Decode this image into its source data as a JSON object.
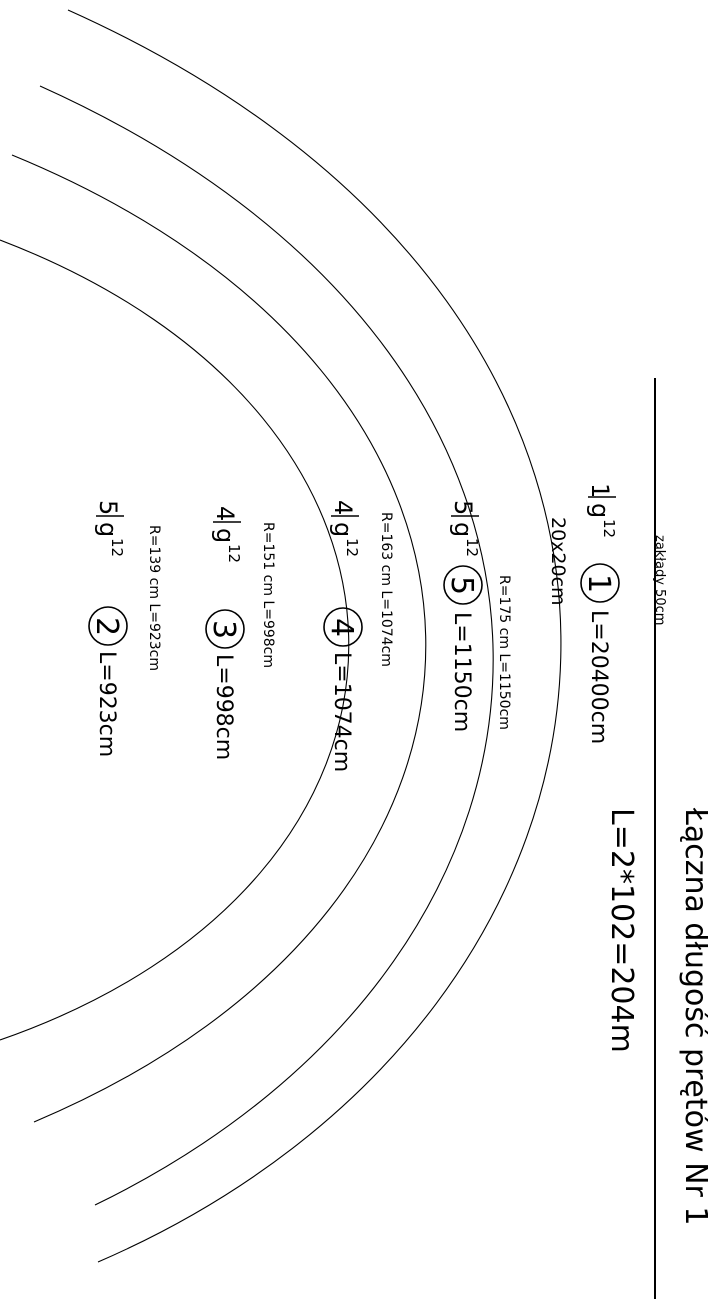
{
  "title": "Łączna długość prętów Nr 1",
  "total_length": "L=2*102=204m",
  "overlap_note": "zakłady 50cm",
  "main_bar": {
    "count": "1",
    "bar": "g",
    "diameter": "12",
    "number": "1",
    "length": "L=20400cm",
    "section": "20x20cm"
  },
  "arcs": [
    {
      "count": "5",
      "bar": "g",
      "diameter": "12",
      "number": "5",
      "length": "L=1150cm",
      "note": "R=175  cm  L=1150cm"
    },
    {
      "count": "4",
      "bar": "g",
      "diameter": "12",
      "number": "4",
      "length": "L=1074cm",
      "note": "R=163  cm  L=1074cm"
    },
    {
      "count": "4",
      "bar": "g",
      "diameter": "12",
      "number": "3",
      "length": "L=998cm",
      "note": "R=151  cm  L=998cm"
    },
    {
      "count": "5",
      "bar": "g",
      "diameter": "12",
      "number": "2",
      "length": "L=923cm",
      "note": "R=139  cm  L=923cm"
    }
  ]
}
